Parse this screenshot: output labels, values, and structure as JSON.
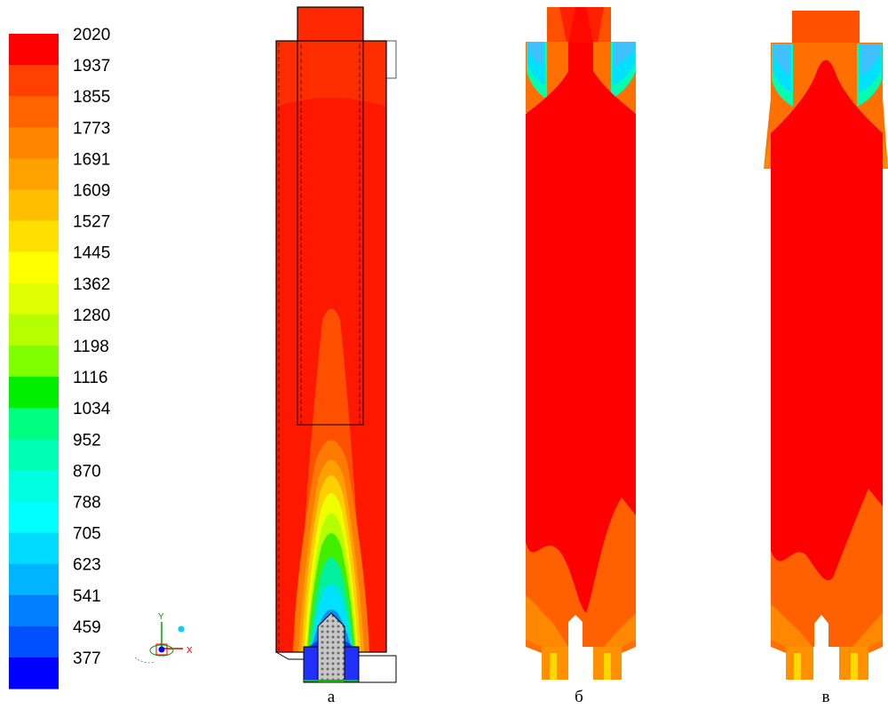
{
  "legend": {
    "levels": [
      "2020",
      "1937",
      "1855",
      "1773",
      "1691",
      "1609",
      "1527",
      "1445",
      "1362",
      "1280",
      "1198",
      "1116",
      "1034",
      "952",
      "870",
      "788",
      "705",
      "623",
      "541",
      "459",
      "377"
    ],
    "colors": [
      "#ff0000",
      "#ff4000",
      "#ff6400",
      "#ff8400",
      "#ffa200",
      "#ffbe00",
      "#ffe000",
      "#ffff00",
      "#e0ff00",
      "#b4ff00",
      "#80ff00",
      "#00ee00",
      "#00ff80",
      "#00ffb4",
      "#00ffe0",
      "#00ffff",
      "#00dcff",
      "#00b4ff",
      "#0080ff",
      "#0050ff",
      "#0000ff"
    ]
  },
  "axis_triad": {
    "y_label": "Y",
    "x_label": "X"
  },
  "panels": [
    {
      "caption": "а"
    },
    {
      "caption": "б"
    },
    {
      "caption": "в"
    }
  ]
}
